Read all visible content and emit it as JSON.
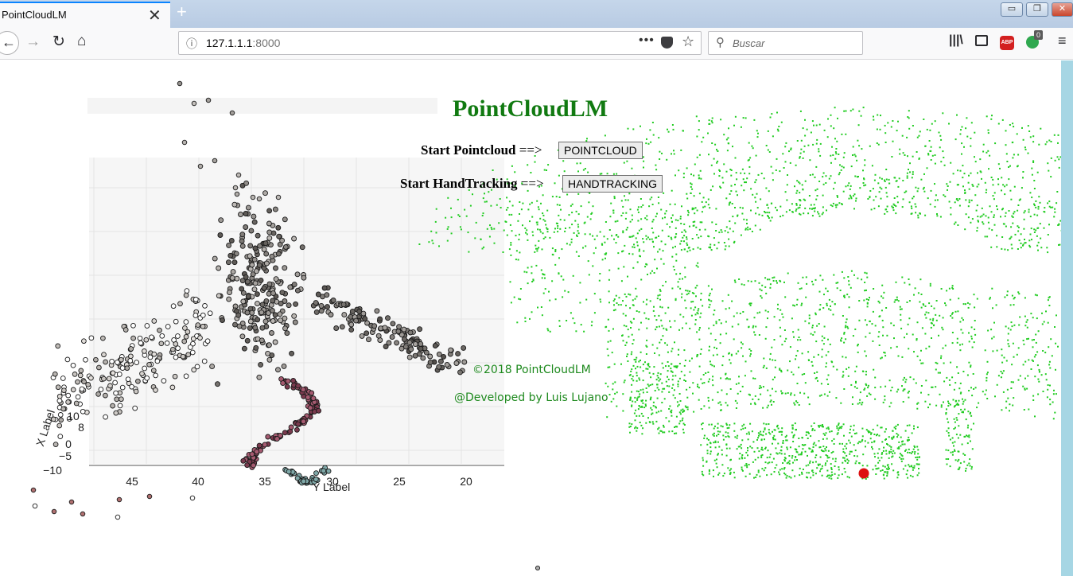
{
  "browser": {
    "tab_title": "PointCloudLM",
    "tab_close": "✕",
    "new_tab": "+",
    "window_buttons": {
      "minimize": "▭",
      "maximize": "❐",
      "close": "✕"
    },
    "url_host": "127.1.1.1",
    "url_port": ":8000",
    "search_placeholder": "Buscar",
    "toolbar_icons": [
      "library-icon",
      "sidebar-icon",
      "adblock-icon",
      "extension-icon",
      "menu-icon"
    ],
    "abp_label": "ABP",
    "extension_badge": "0"
  },
  "page": {
    "title": "PointCloudLM",
    "title_color": "#117a11",
    "rows": [
      {
        "label": "Start Pointcloud",
        "arrow": "==>",
        "button": "POINTCLOUD"
      },
      {
        "label": "Start HandTracking",
        "arrow": "==>",
        "button": "HANDTRACKING"
      }
    ],
    "copyright": "©2018 PointCloudLM",
    "developer": "@Developed by Luis Lujano",
    "footer_color": "#1e8a1e"
  },
  "scatter_plot": {
    "y_axis_label": "Y Label",
    "x_axis_label": "X Label",
    "y_ticks": [
      "45",
      "40",
      "35",
      "30",
      "25",
      "20"
    ],
    "x_ticks": [
      "10",
      "8",
      "0",
      "−5",
      "−10"
    ]
  },
  "point_cloud": {
    "point_color": "#22cc22",
    "marker_color": "#dd1010"
  }
}
